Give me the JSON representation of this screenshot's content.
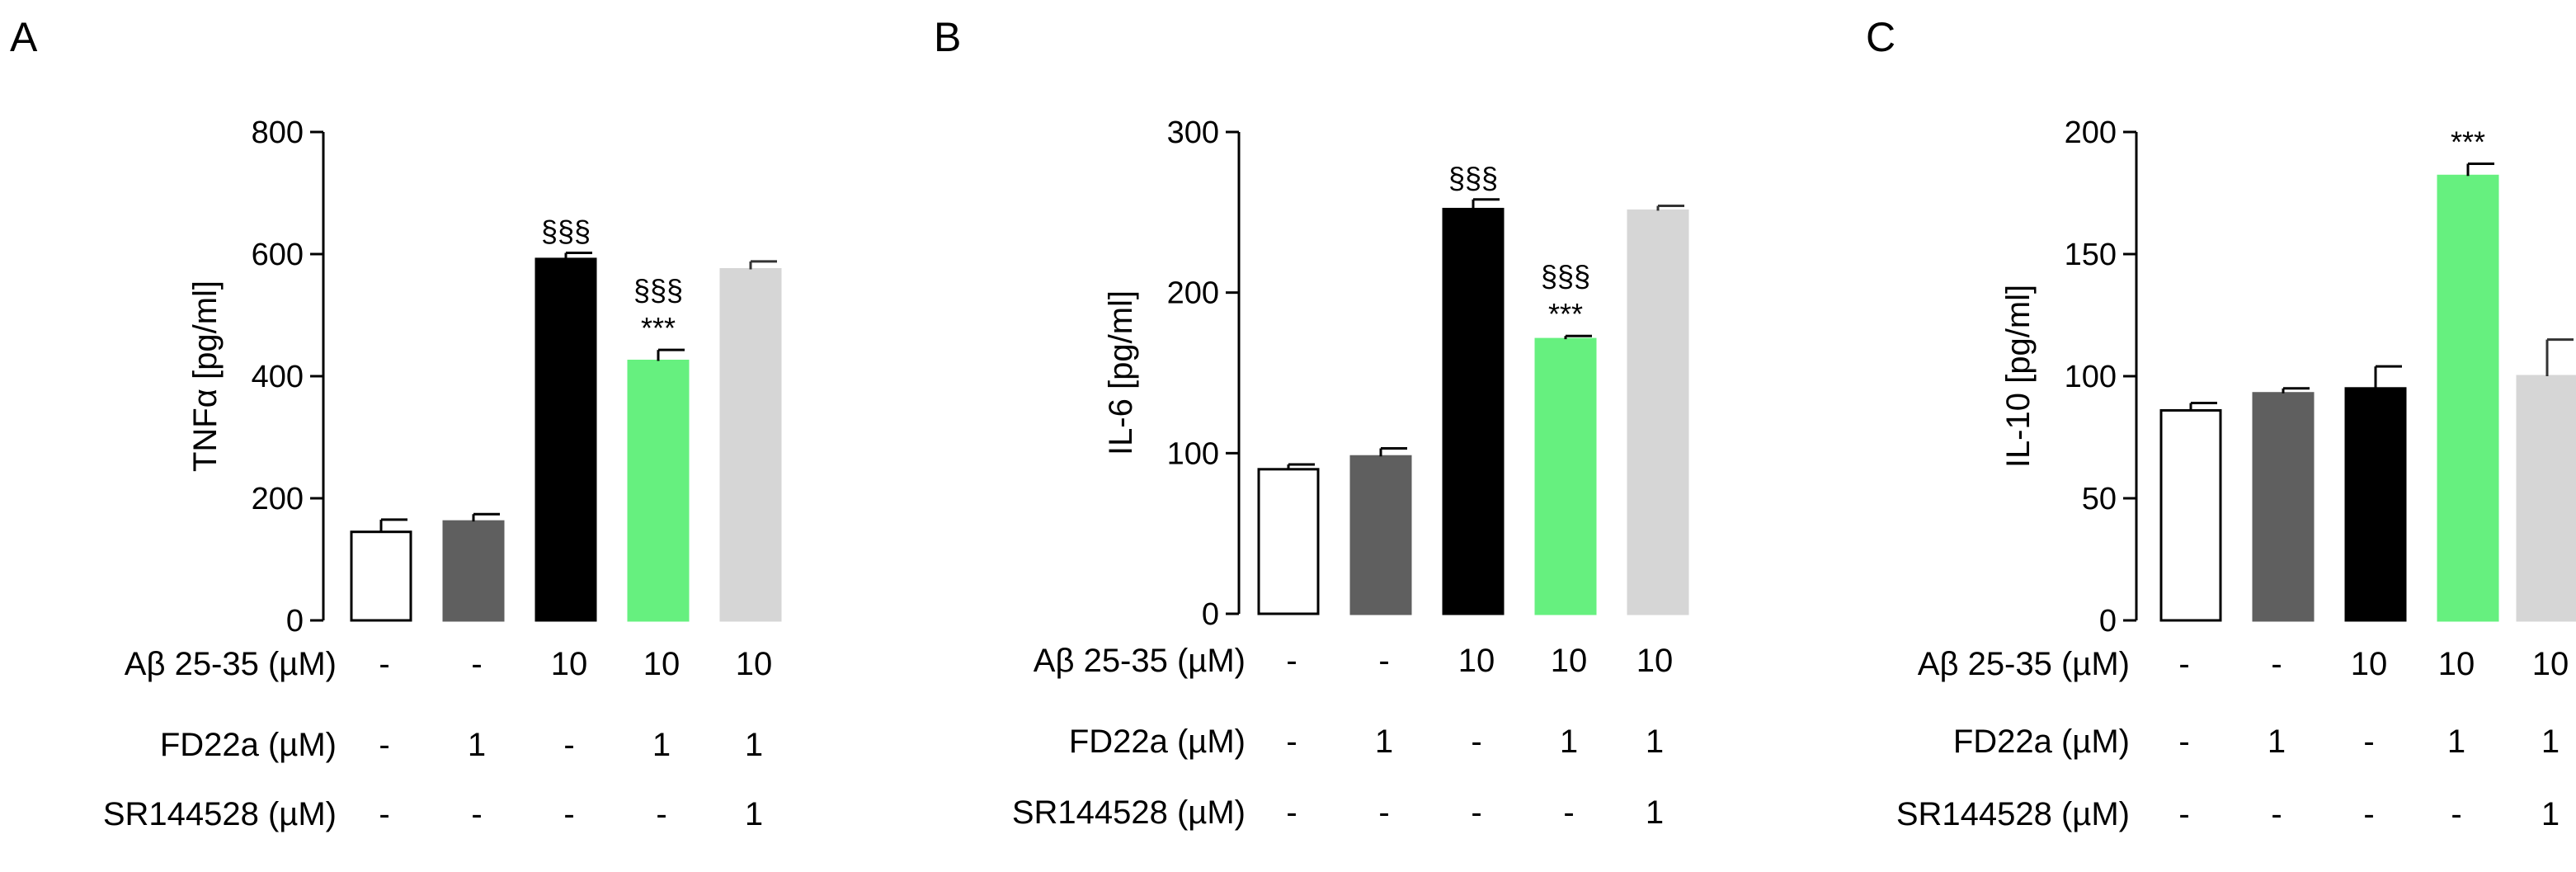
{
  "panels": [
    {
      "letter": "A"
    },
    {
      "letter": "B"
    },
    {
      "letter": "C"
    }
  ],
  "colors": {
    "bar_edge": "#000000",
    "bars": [
      "#ffffff",
      "#5f5f5f",
      "#000000",
      "#66f07f",
      "#d6d6d6"
    ]
  },
  "conditions": {
    "row_labels": [
      "Aβ 25-35 (µM)",
      "FD22a (µM)",
      "SR144528 (µM)"
    ],
    "values": [
      [
        "-",
        "-",
        "10",
        "10",
        "10"
      ],
      [
        "-",
        "1",
        "-",
        "1",
        "1"
      ],
      [
        "-",
        "-",
        "-",
        "-",
        "1"
      ]
    ]
  },
  "chart_data": [
    {
      "type": "bar",
      "panel": "A",
      "ylabel": "TNFα [pg/ml]",
      "ylim": [
        0,
        800
      ],
      "yticks": [
        0,
        200,
        400,
        600,
        800
      ],
      "values": [
        145,
        162,
        592,
        425,
        575
      ],
      "errors": [
        20,
        12,
        10,
        18,
        13
      ],
      "annotations": [
        {
          "bar": 2,
          "lines": [
            "§§§"
          ]
        },
        {
          "bar": 3,
          "lines": [
            "§§§",
            "***"
          ]
        }
      ]
    },
    {
      "type": "bar",
      "panel": "B",
      "ylabel": "IL-6 [pg/ml]",
      "ylim": [
        0,
        300
      ],
      "yticks": [
        0,
        100,
        200,
        300
      ],
      "values": [
        90,
        98,
        252,
        171,
        251
      ],
      "errors": [
        3,
        5,
        6,
        2,
        3
      ],
      "annotations": [
        {
          "bar": 2,
          "lines": [
            "§§§"
          ]
        },
        {
          "bar": 3,
          "lines": [
            "§§§",
            "***"
          ]
        }
      ]
    },
    {
      "type": "bar",
      "panel": "C",
      "ylabel": "IL-10 [pg/ml]",
      "ylim": [
        0,
        200
      ],
      "yticks": [
        0,
        50,
        100,
        150,
        200
      ],
      "values": [
        86,
        93,
        95,
        182,
        100
      ],
      "errors": [
        3,
        2,
        9,
        5,
        15
      ],
      "annotations": [
        {
          "bar": 3,
          "lines": [
            "***"
          ]
        }
      ]
    }
  ]
}
